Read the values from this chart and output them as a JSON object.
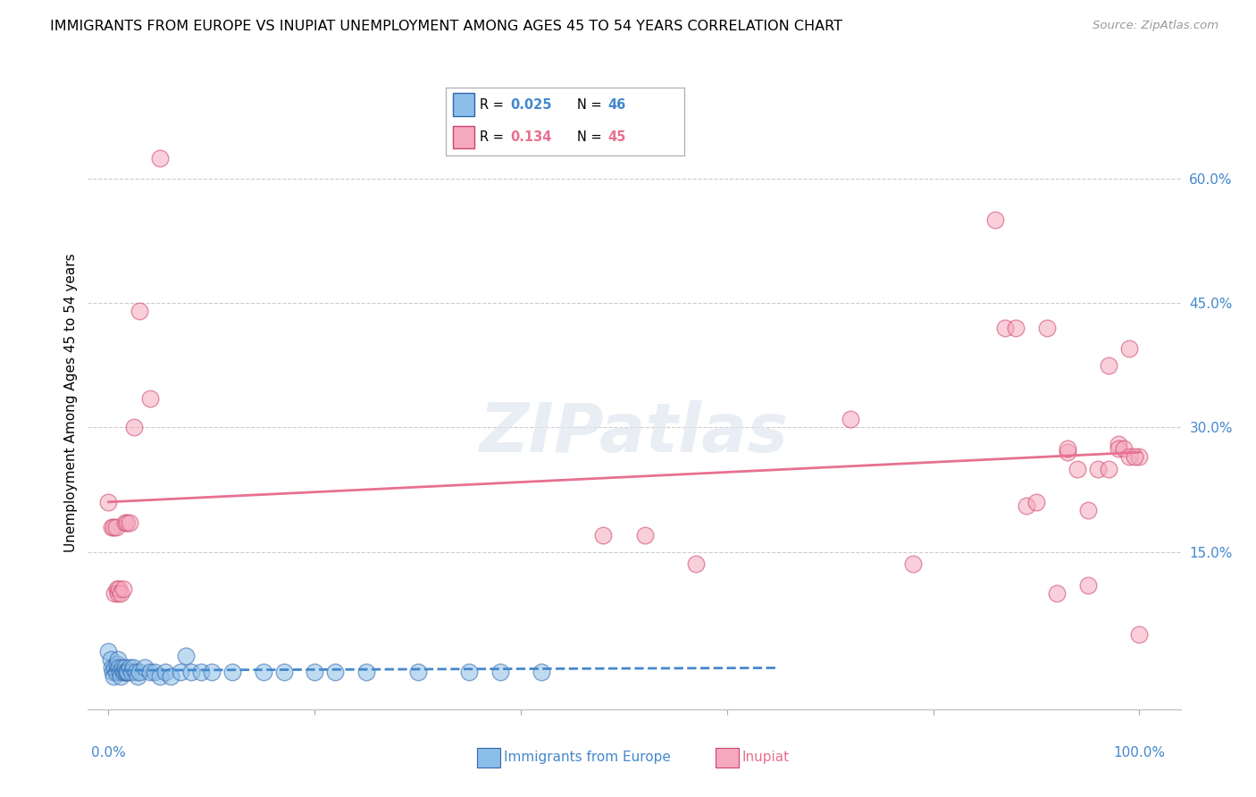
{
  "title": "IMMIGRANTS FROM EUROPE VS INUPIAT UNEMPLOYMENT AMONG AGES 45 TO 54 YEARS CORRELATION CHART",
  "source": "Source: ZipAtlas.com",
  "ylabel": "Unemployment Among Ages 45 to 54 years",
  "ytick_labels": [
    "",
    "15.0%",
    "30.0%",
    "45.0%",
    "60.0%"
  ],
  "ytick_values": [
    0.0,
    0.15,
    0.3,
    0.45,
    0.6
  ],
  "watermark": "ZIPatlas",
  "blue_color": "#8bbee8",
  "pink_color": "#f5a8c0",
  "blue_line_color": "#4488cc",
  "pink_line_color": "#e87090",
  "blue_edge_color": "#3366aa",
  "pink_edge_color": "#cc4466",
  "background_color": "#ffffff",
  "grid_color": "#cccccc",
  "title_fontsize": 11.5,
  "source_fontsize": 9.5,
  "axis_label_fontsize": 11,
  "tick_fontsize": 11,
  "legend_label1": "R =  0.025   N = 46",
  "legend_label2": "R =  0.134   N = 45",
  "legend_R1": "0.025",
  "legend_N1": "46",
  "legend_R2": "0.134",
  "legend_N2": "45",
  "blue_scatter_x": [
    0.0,
    0.002,
    0.003,
    0.004,
    0.005,
    0.006,
    0.007,
    0.008,
    0.009,
    0.01,
    0.011,
    0.012,
    0.013,
    0.014,
    0.015,
    0.016,
    0.017,
    0.018,
    0.019,
    0.02,
    0.022,
    0.024,
    0.026,
    0.028,
    0.03,
    0.035,
    0.04,
    0.045,
    0.05,
    0.055,
    0.06,
    0.07,
    0.075,
    0.08,
    0.09,
    0.1,
    0.12,
    0.15,
    0.17,
    0.2,
    0.22,
    0.25,
    0.3,
    0.35,
    0.38,
    0.42
  ],
  "blue_scatter_y": [
    0.03,
    0.02,
    0.01,
    0.005,
    0.0,
    0.01,
    0.005,
    0.015,
    0.02,
    0.01,
    0.005,
    0.0,
    0.01,
    0.005,
    0.005,
    0.01,
    0.005,
    0.005,
    0.005,
    0.01,
    0.005,
    0.01,
    0.005,
    0.0,
    0.005,
    0.01,
    0.005,
    0.005,
    0.0,
    0.005,
    0.0,
    0.005,
    0.025,
    0.005,
    0.005,
    0.005,
    0.005,
    0.005,
    0.005,
    0.005,
    0.005,
    0.005,
    0.005,
    0.005,
    0.005,
    0.005
  ],
  "pink_scatter_x": [
    0.0,
    0.003,
    0.005,
    0.006,
    0.007,
    0.008,
    0.009,
    0.01,
    0.012,
    0.014,
    0.016,
    0.018,
    0.02,
    0.025,
    0.03,
    0.04,
    0.05,
    0.48,
    0.52,
    0.57,
    0.72,
    0.78,
    0.86,
    0.87,
    0.88,
    0.89,
    0.9,
    0.91,
    0.92,
    0.93,
    0.93,
    0.94,
    0.95,
    0.95,
    0.96,
    0.97,
    0.97,
    0.98,
    0.98,
    0.985,
    0.99,
    0.99,
    1.0,
    1.0,
    0.995
  ],
  "pink_scatter_y": [
    0.21,
    0.18,
    0.18,
    0.1,
    0.18,
    0.105,
    0.1,
    0.105,
    0.1,
    0.105,
    0.185,
    0.185,
    0.185,
    0.3,
    0.44,
    0.335,
    0.625,
    0.17,
    0.17,
    0.135,
    0.31,
    0.135,
    0.55,
    0.42,
    0.42,
    0.205,
    0.21,
    0.42,
    0.1,
    0.27,
    0.275,
    0.25,
    0.2,
    0.11,
    0.25,
    0.375,
    0.25,
    0.28,
    0.275,
    0.275,
    0.395,
    0.265,
    0.265,
    0.05,
    0.265
  ],
  "blue_trend_x": [
    0.0,
    0.65
  ],
  "blue_trend_y": [
    0.007,
    0.01
  ],
  "pink_trend_x": [
    0.0,
    1.0
  ],
  "pink_trend_y": [
    0.21,
    0.27
  ],
  "xlim": [
    -0.02,
    1.04
  ],
  "ylim": [
    -0.04,
    0.7
  ]
}
